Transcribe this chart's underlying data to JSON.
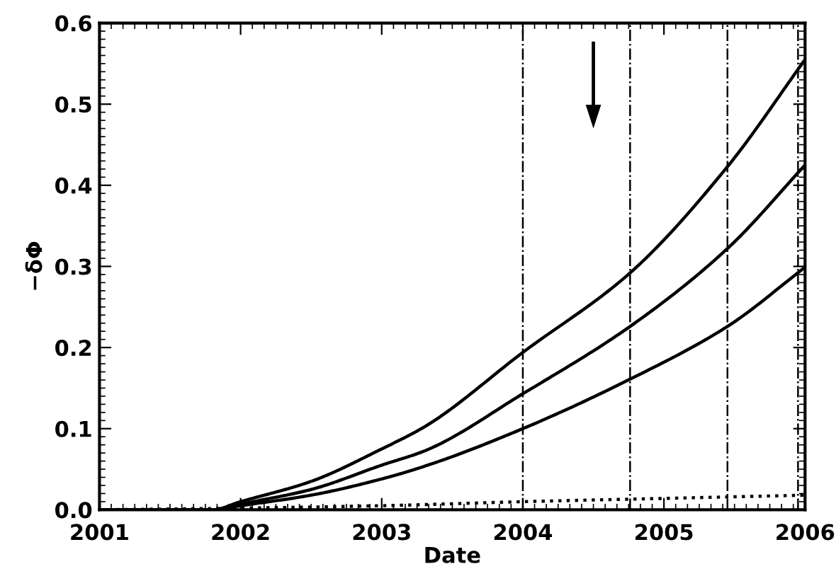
{
  "chart_data": {
    "type": "line",
    "xlabel": "Date",
    "ylabel": "−δΦ",
    "xlim": [
      2001,
      2006
    ],
    "xticks": [
      2001,
      2002,
      2003,
      2004,
      2005,
      2006
    ],
    "ylim": [
      0,
      0.6
    ],
    "yticks": [
      {
        "value": 0,
        "label": "0.0"
      },
      0.1,
      0.2,
      0.3,
      0.4,
      0.5,
      0.6
    ],
    "grid": false,
    "marker": "none",
    "series": [
      {
        "color": "#000000",
        "line_style": "solid",
        "x": [
          2001,
          2001.8,
          2002,
          2002.5,
          2003,
          2003.31,
          2004,
          2004.76,
          2005.45,
          2006
        ],
        "values": [
          0,
          0,
          0.01,
          0.035,
          0.075,
          0.103,
          0.194,
          0.292,
          0.423,
          0.555
        ]
      },
      {
        "color": "#000000",
        "line_style": "solid",
        "x": [
          2001,
          2001.8,
          2002,
          2002.5,
          2003,
          2003.31,
          2004,
          2004.76,
          2005.45,
          2006
        ],
        "values": [
          0,
          0,
          0.007,
          0.025,
          0.055,
          0.073,
          0.143,
          0.226,
          0.322,
          0.425
        ]
      },
      {
        "color": "#000000",
        "line_style": "solid",
        "x": [
          2001,
          2001.8,
          2002,
          2002.5,
          2003,
          2003.31,
          2004,
          2004.76,
          2005.45,
          2006
        ],
        "values": [
          0,
          0,
          0.005,
          0.018,
          0.038,
          0.054,
          0.1,
          0.161,
          0.226,
          0.299
        ]
      },
      {
        "color": "#000000",
        "line_style": "dotted",
        "x": [
          2001,
          2002,
          2003,
          2004,
          2005,
          2006
        ],
        "values": [
          0,
          0.002,
          0.005,
          0.01,
          0.014,
          0.018
        ]
      }
    ],
    "ref_lines": [
      {
        "axis": "x",
        "value": 2004.0,
        "line_style": "dashdot",
        "color": "#000000"
      },
      {
        "axis": "x",
        "value": 2004.76,
        "line_style": "dashdot",
        "color": "#000000"
      },
      {
        "axis": "x",
        "value": 2005.45,
        "line_style": "dashdot",
        "color": "#000000"
      },
      {
        "axis": "x",
        "value": 2005.95,
        "line_style": "dashdot",
        "color": "#000000"
      }
    ]
  }
}
